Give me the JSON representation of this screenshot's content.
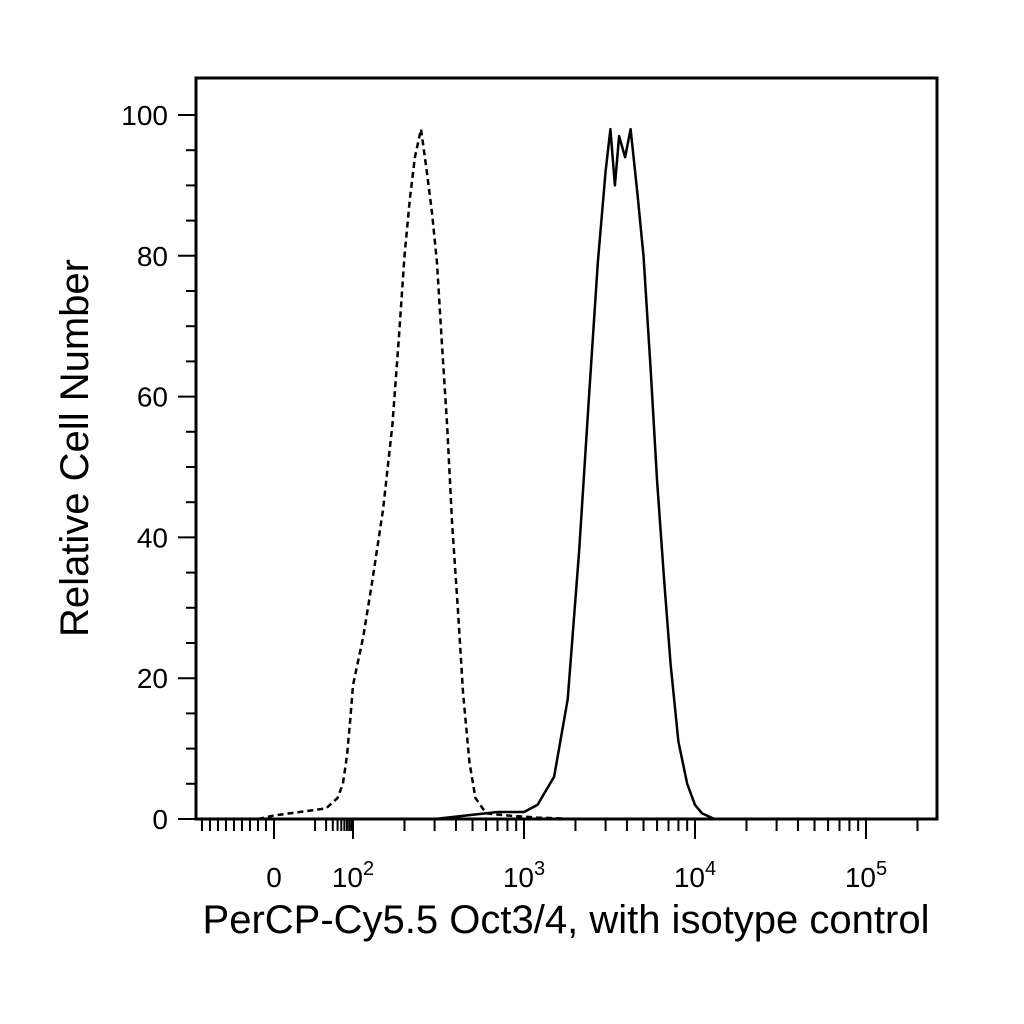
{
  "chart_data": {
    "type": "line",
    "title": "",
    "xlabel": "PerCP-Cy5.5 Oct3/4, with isotype control",
    "ylabel": "Relative Cell Number",
    "x_scale": "biexponential",
    "xlim": [
      -90,
      250000
    ],
    "ylim": [
      0,
      105
    ],
    "y_ticks": [
      0,
      20,
      40,
      60,
      80,
      100
    ],
    "x_ticks": [
      {
        "value": 0,
        "base": "0",
        "exp": ""
      },
      {
        "value": 100,
        "base": "10",
        "exp": "2"
      },
      {
        "value": 1000,
        "base": "10",
        "exp": "3"
      },
      {
        "value": 10000,
        "base": "10",
        "exp": "4"
      },
      {
        "value": 100000,
        "base": "10",
        "exp": "5"
      }
    ],
    "grid": false,
    "legend": "none",
    "series": [
      {
        "style": "dashed",
        "color": "#000000",
        "points": [
          [
            -20,
            0
          ],
          [
            0,
            0.5
          ],
          [
            20,
            1.5
          ],
          [
            40,
            3
          ],
          [
            55,
            5
          ],
          [
            70,
            9
          ],
          [
            85,
            14
          ],
          [
            100,
            19
          ],
          [
            115,
            26
          ],
          [
            130,
            34
          ],
          [
            150,
            44
          ],
          [
            170,
            56
          ],
          [
            185,
            68
          ],
          [
            200,
            80
          ],
          [
            215,
            88
          ],
          [
            230,
            94
          ],
          [
            250,
            98
          ],
          [
            270,
            92
          ],
          [
            290,
            86
          ],
          [
            310,
            79
          ],
          [
            330,
            68
          ],
          [
            355,
            56
          ],
          [
            380,
            42
          ],
          [
            410,
            30
          ],
          [
            440,
            18
          ],
          [
            480,
            8
          ],
          [
            520,
            3
          ],
          [
            600,
            0.8
          ],
          [
            800,
            0.5
          ],
          [
            1200,
            0.2
          ],
          [
            2000,
            0
          ],
          [
            10000,
            0
          ],
          [
            200000,
            0
          ]
        ]
      },
      {
        "style": "solid",
        "color": "#000000",
        "points": [
          [
            -20,
            0
          ],
          [
            300,
            0
          ],
          [
            700,
            1
          ],
          [
            1000,
            1
          ],
          [
            1200,
            2
          ],
          [
            1500,
            6
          ],
          [
            1800,
            17
          ],
          [
            2100,
            38
          ],
          [
            2400,
            60
          ],
          [
            2700,
            79
          ],
          [
            3000,
            92
          ],
          [
            3200,
            98
          ],
          [
            3400,
            90
          ],
          [
            3600,
            97
          ],
          [
            3900,
            94
          ],
          [
            4200,
            98
          ],
          [
            4600,
            89
          ],
          [
            5000,
            80
          ],
          [
            5500,
            64
          ],
          [
            6000,
            48
          ],
          [
            6600,
            34
          ],
          [
            7200,
            22
          ],
          [
            8000,
            11
          ],
          [
            9000,
            5
          ],
          [
            10000,
            2
          ],
          [
            11000,
            0.8
          ],
          [
            13000,
            0
          ],
          [
            200000,
            0
          ]
        ]
      }
    ]
  }
}
